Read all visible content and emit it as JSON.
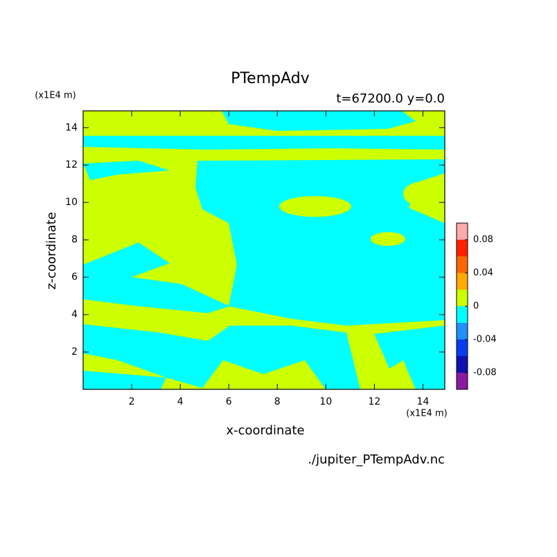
{
  "chart_data": {
    "type": "contour",
    "title": "PTempAdv",
    "subtitle": "t=67200.0 y=0.0",
    "x_label": "x-coordinate",
    "y_label": "z-coordinate",
    "x_unit": "(x1E4 m)",
    "y_unit": "(x1E4 m)",
    "source": "./jupiter_PTempAdv.nc",
    "xlim": [
      0,
      14.9
    ],
    "ylim": [
      0,
      14.9
    ],
    "xticks": [
      2,
      4,
      6,
      8,
      10,
      12,
      14
    ],
    "yticks": [
      2,
      4,
      6,
      8,
      10,
      12,
      14
    ],
    "colorbar": {
      "levels": [
        -0.1,
        -0.08,
        -0.06,
        -0.04,
        -0.02,
        0,
        0.02,
        0.04,
        0.06,
        0.08,
        0.1
      ],
      "colors": [
        "#8b1aa0",
        "#1010b0",
        "#0a3cf0",
        "#1e90ff",
        "#00ffff",
        "#ccff00",
        "#ffaa00",
        "#ff6600",
        "#ff2000",
        "#ffaaaa"
      ],
      "ticks": [
        -0.08,
        -0.04,
        0,
        0.04,
        0.08
      ]
    }
  }
}
